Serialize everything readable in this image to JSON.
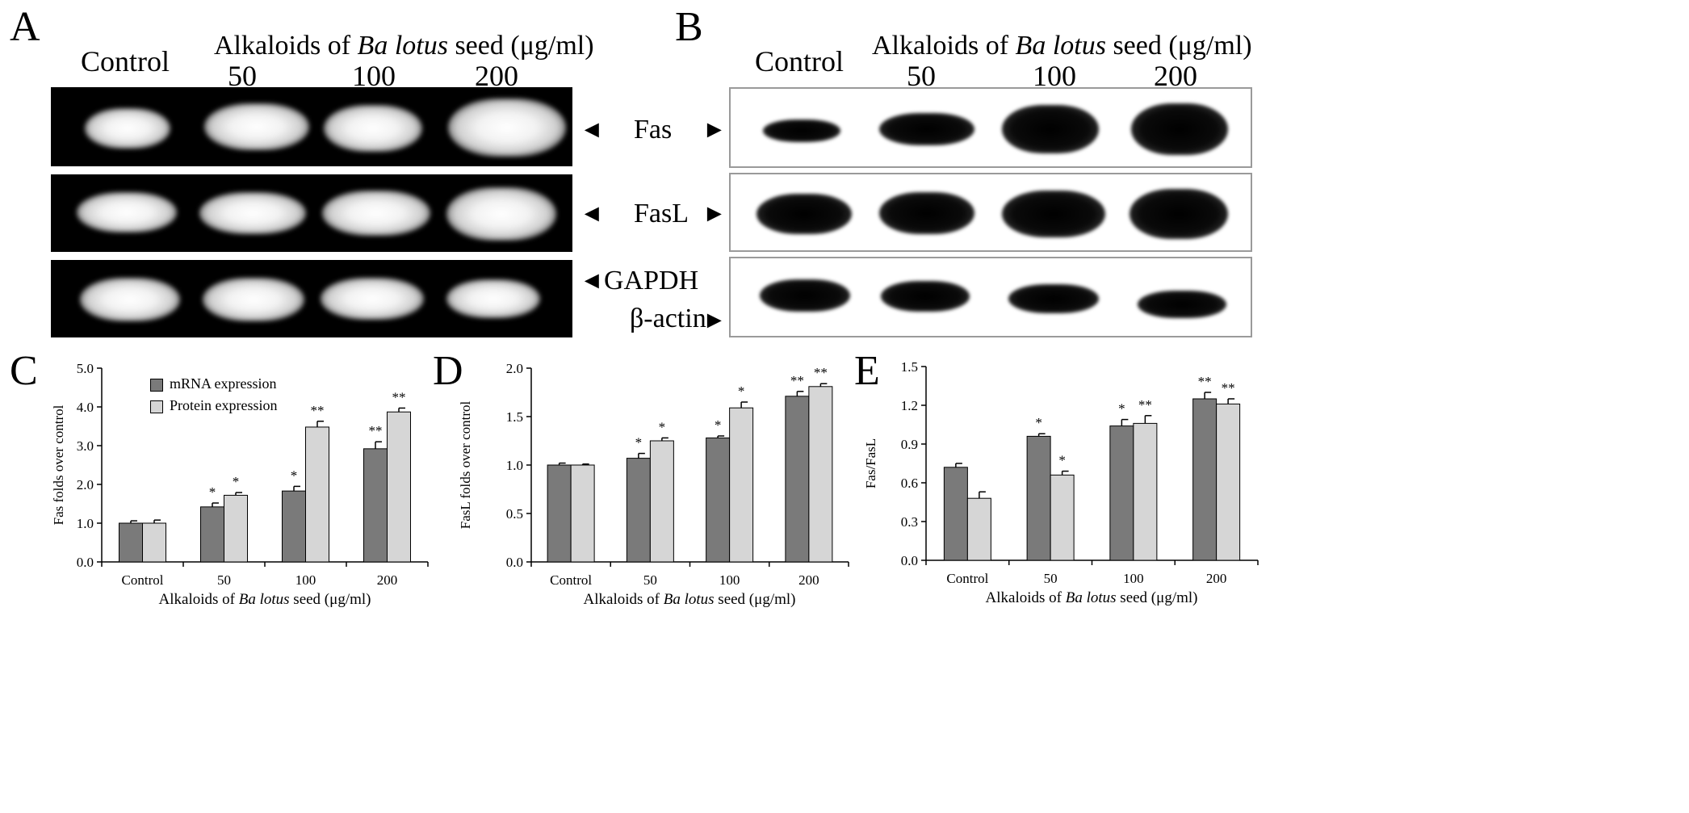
{
  "panels": {
    "A": {
      "letter": "A",
      "header_prefix": "Alkaloids of ",
      "header_italic": "Ba lotus",
      "header_suffix": " seed (μg/ml)",
      "control": "Control",
      "doses": [
        "50",
        "100",
        "200"
      ],
      "markers": {
        "fas": "Fas",
        "fasl": "FasL",
        "gapdh": "GAPDH"
      }
    },
    "B": {
      "letter": "B",
      "header_prefix": "Alkaloids of ",
      "header_italic": "Ba lotus",
      "header_suffix": " seed (μg/ml)",
      "control": "Control",
      "doses": [
        "50",
        "100",
        "200"
      ],
      "markers": {
        "fas": "Fas",
        "fasl": "FasL",
        "actin": "β-actin"
      }
    },
    "arrows": {
      "left": "◄",
      "right": "►"
    }
  },
  "legend": {
    "mrna": "mRNA expression",
    "protein": "Protein expression",
    "mrna_color": "#7a7a7a",
    "protein_color": "#d6d6d6"
  },
  "chart_data": [
    {
      "panel": "C",
      "type": "bar",
      "categories": [
        "Control",
        "50",
        "100",
        "200"
      ],
      "series": [
        {
          "name": "mRNA expression",
          "values": [
            1.0,
            1.42,
            1.83,
            2.92
          ],
          "errors": [
            0.06,
            0.1,
            0.12,
            0.18
          ],
          "sig": [
            "",
            "*",
            "*",
            "**"
          ]
        },
        {
          "name": "Protein expression",
          "values": [
            1.0,
            1.72,
            3.48,
            3.87
          ],
          "errors": [
            0.08,
            0.07,
            0.15,
            0.1
          ],
          "sig": [
            "",
            "*",
            "**",
            "**"
          ]
        }
      ],
      "ylabel": "Fas folds over control",
      "xlabel_prefix": "Alkaloids of ",
      "xlabel_italic": "Ba lotus",
      "xlabel_suffix": " seed (μg/ml)",
      "ylim": [
        0,
        5.0
      ],
      "yticks": [
        "0.0",
        "1.0",
        "2.0",
        "3.0",
        "4.0",
        "5.0"
      ],
      "legend": "top-left"
    },
    {
      "panel": "D",
      "type": "bar",
      "categories": [
        "Control",
        "50",
        "100",
        "200"
      ],
      "series": [
        {
          "name": "mRNA expression",
          "values": [
            1.0,
            1.07,
            1.28,
            1.71
          ],
          "errors": [
            0.02,
            0.05,
            0.02,
            0.05
          ],
          "sig": [
            "",
            "*",
            "*",
            "**"
          ]
        },
        {
          "name": "Protein expression",
          "values": [
            1.0,
            1.25,
            1.59,
            1.81
          ],
          "errors": [
            0.01,
            0.03,
            0.06,
            0.03
          ],
          "sig": [
            "",
            "*",
            "*",
            "**"
          ]
        }
      ],
      "ylabel": "FasL folds over control",
      "xlabel_prefix": "Alkaloids of ",
      "xlabel_italic": "Ba lotus",
      "xlabel_suffix": " seed (μg/ml)",
      "ylim": [
        0,
        2.0
      ],
      "yticks": [
        "0.0",
        "0.5",
        "1.0",
        "1.5",
        "2.0"
      ]
    },
    {
      "panel": "E",
      "type": "bar",
      "categories": [
        "Control",
        "50",
        "100",
        "200"
      ],
      "series": [
        {
          "name": "mRNA expression",
          "values": [
            0.72,
            0.96,
            1.04,
            1.25
          ],
          "errors": [
            0.03,
            0.02,
            0.05,
            0.05
          ],
          "sig": [
            "",
            "*",
            "*",
            "**"
          ]
        },
        {
          "name": "Protein expression",
          "values": [
            0.48,
            0.66,
            1.06,
            1.21
          ],
          "errors": [
            0.05,
            0.03,
            0.06,
            0.04
          ],
          "sig": [
            "",
            "*",
            "**",
            "**"
          ]
        }
      ],
      "ylabel": "Fas/FasL",
      "xlabel_prefix": "Alkaloids of ",
      "xlabel_italic": "Ba lotus",
      "xlabel_suffix": " seed (μg/ml)",
      "ylim": [
        0,
        1.5
      ],
      "yticks": [
        "0.0",
        "0.3",
        "0.6",
        "0.9",
        "1.2",
        "1.5"
      ]
    }
  ]
}
